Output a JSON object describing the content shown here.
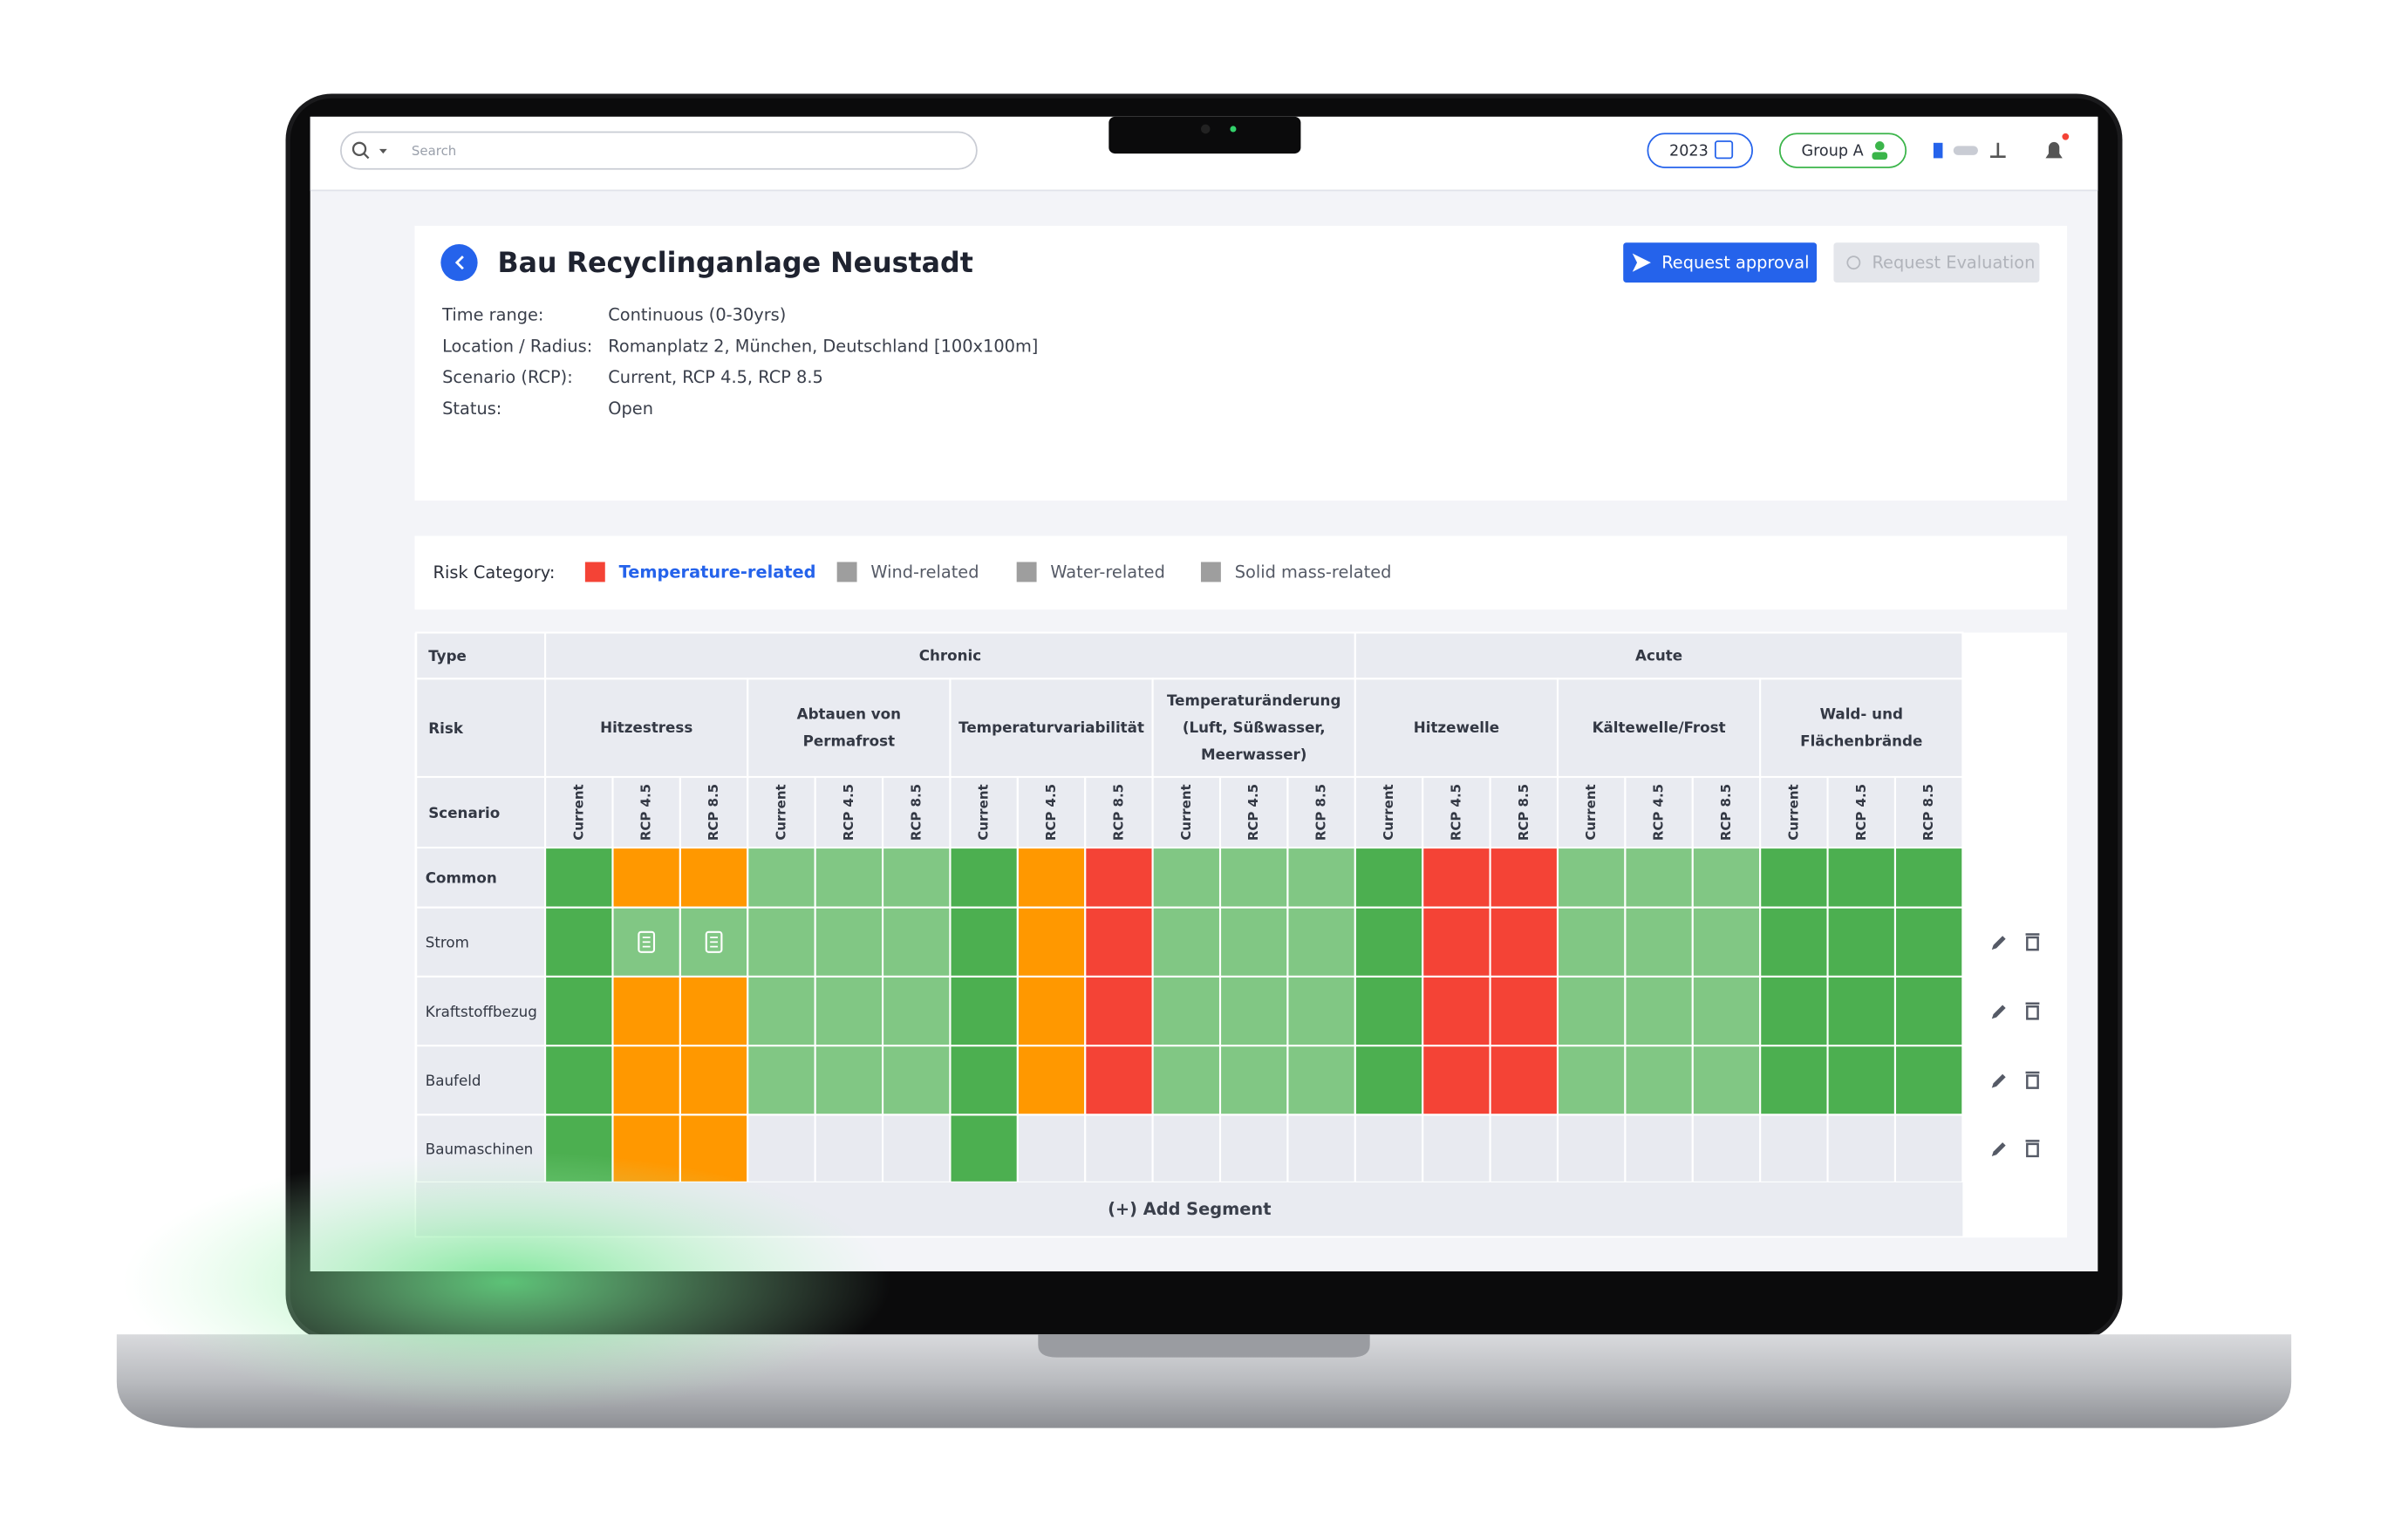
{
  "topbar": {
    "search_placeholder": "Search",
    "year": "2023",
    "group": "Group A"
  },
  "project": {
    "title": "Bau Recyclinganlage Neustadt",
    "actions": [
      "Request approval",
      "Request Evaluation"
    ],
    "details": [
      {
        "label": "Time range:",
        "value": "Continuous (0-30yrs)"
      },
      {
        "label": "Location / Radius:",
        "value": "Romanplatz 2, München, Deutschland [100x100m]"
      },
      {
        "label": "Scenario (RCP):",
        "value": "Current, RCP 4.5, RCP 8.5"
      },
      {
        "label": "Status:",
        "value": "Open"
      }
    ]
  },
  "risk_filter": {
    "label": "Risk Category:",
    "categories": [
      {
        "name": "Temperature-related",
        "color": "#f44336",
        "active": true
      },
      {
        "name": "Wind-related",
        "color": "#9e9e9e",
        "active": false
      },
      {
        "name": "Water-related",
        "color": "#9e9e9e",
        "active": false
      },
      {
        "name": "Solid mass-related",
        "color": "#9e9e9e",
        "active": false
      }
    ]
  },
  "matrix": {
    "header": {
      "type": "Type",
      "risk": "Risk",
      "scenario": "Scenario"
    },
    "scenarios": [
      "Current",
      "RCP 4.5",
      "RCP 8.5"
    ],
    "types": [
      {
        "name": "Chronic",
        "risks": [
          {
            "lines": [
              "Hitzestress"
            ]
          },
          {
            "lines": [
              "Abtauen von",
              "Permafrost"
            ]
          },
          {
            "lines": [
              "Temperaturvariabilität"
            ]
          },
          {
            "lines": [
              "Temperaturänderung",
              "(Luft, Süßwasser,",
              "Meerwasser)"
            ]
          }
        ]
      },
      {
        "name": "Acute",
        "risks": [
          {
            "lines": [
              "Hitzewelle"
            ]
          },
          {
            "lines": [
              "Kältewelle/Frost"
            ]
          },
          {
            "lines": [
              "Wald- und",
              "Flächenbrände"
            ]
          }
        ]
      }
    ],
    "rows": [
      {
        "name": "Common",
        "bold": true,
        "notes": [],
        "cells": [
          "#4caf50",
          "#ff9800",
          "#ff9800",
          "#81c784",
          "#81c784",
          "#81c784",
          "#4caf50",
          "#ff9800",
          "#f44336",
          "#81c784",
          "#81c784",
          "#81c784",
          "#4caf50",
          "#f44336",
          "#f44336",
          "#81c784",
          "#81c784",
          "#81c784",
          "#4caf50",
          "#4caf50",
          "#4caf50"
        ]
      },
      {
        "name": "Strom",
        "bold": false,
        "notes": [
          1,
          2
        ],
        "cells": [
          "#4caf50",
          "#81c784",
          "#81c784",
          "#81c784",
          "#81c784",
          "#81c784",
          "#4caf50",
          "#ff9800",
          "#f44336",
          "#81c784",
          "#81c784",
          "#81c784",
          "#4caf50",
          "#f44336",
          "#f44336",
          "#81c784",
          "#81c784",
          "#81c784",
          "#4caf50",
          "#4caf50",
          "#4caf50"
        ]
      },
      {
        "name": "Kraftstoffbezug",
        "bold": false,
        "notes": [],
        "cells": [
          "#4caf50",
          "#ff9800",
          "#ff9800",
          "#81c784",
          "#81c784",
          "#81c784",
          "#4caf50",
          "#ff9800",
          "#f44336",
          "#81c784",
          "#81c784",
          "#81c784",
          "#4caf50",
          "#f44336",
          "#f44336",
          "#81c784",
          "#81c784",
          "#81c784",
          "#4caf50",
          "#4caf50",
          "#4caf50"
        ]
      },
      {
        "name": "Baufeld",
        "bold": false,
        "notes": [],
        "cells": [
          "#4caf50",
          "#ff9800",
          "#ff9800",
          "#81c784",
          "#81c784",
          "#81c784",
          "#4caf50",
          "#ff9800",
          "#f44336",
          "#81c784",
          "#81c784",
          "#81c784",
          "#4caf50",
          "#f44336",
          "#f44336",
          "#81c784",
          "#81c784",
          "#81c784",
          "#4caf50",
          "#4caf50",
          "#4caf50"
        ]
      },
      {
        "name": "Baumaschinen",
        "bold": false,
        "notes": [],
        "cells": [
          "#4caf50",
          "#ff9800",
          "#ff9800",
          "#e8eaf0",
          "#e8eaf0",
          "#e8eaf0",
          "#4caf50",
          "#e8eaf0",
          "#e8eaf0",
          "#e8eaf0",
          "#e8eaf0",
          "#e8eaf0",
          "#e8eaf0",
          "#e8eaf0",
          "#e8eaf0",
          "#e8eaf0",
          "#e8eaf0",
          "#e8eaf0",
          "#e8eaf0",
          "#e8eaf0",
          "#e8eaf0"
        ]
      }
    ],
    "add": "(+) Add Segment"
  }
}
